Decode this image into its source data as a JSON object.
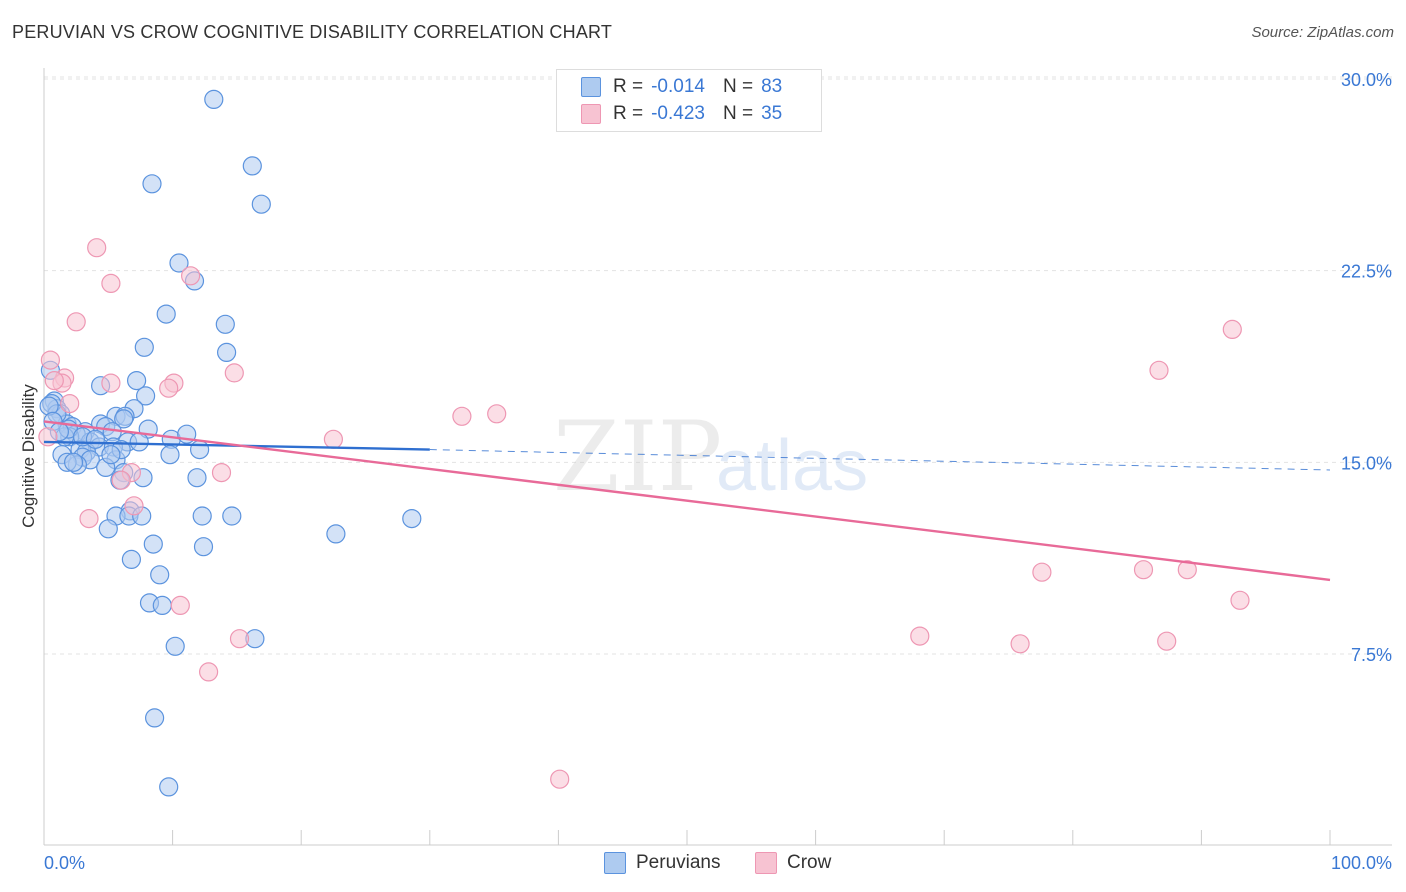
{
  "title": "PERUVIAN VS CROW COGNITIVE DISABILITY CORRELATION CHART",
  "source": "Source: ZipAtlas.com",
  "watermark": {
    "zip": "ZIP",
    "atlas": "atlas"
  },
  "legend": {
    "peruvians": {
      "r_label": "R =",
      "r_value": "-0.014",
      "n_label": "N =",
      "n_value": "83"
    },
    "crow": {
      "r_label": "R =",
      "r_value": "-0.423",
      "n_label": "N =",
      "n_value": "35"
    }
  },
  "bottom_legend": {
    "peruvians": "Peruvians",
    "crow": "Crow"
  },
  "colors": {
    "blue_fill": "#aecbf0",
    "blue_stroke": "#5b93de",
    "blue_line": "#2f6fd0",
    "pink_fill": "#f7c3d2",
    "pink_stroke": "#ee97b3",
    "pink_line": "#e86a98",
    "axis_text": "#3a78d4",
    "grid": "#e3e3e3"
  },
  "chart_data": {
    "type": "scatter",
    "title": "PERUVIAN VS CROW COGNITIVE DISABILITY CORRELATION CHART",
    "xlabel": "",
    "ylabel": "Cognitive Disability",
    "xlim": [
      0,
      100
    ],
    "ylim": [
      0,
      31
    ],
    "x_tick_labels": [
      "0.0%",
      "100.0%"
    ],
    "y_ticks": [
      7.5,
      15.0,
      22.5,
      30.0
    ],
    "y_tick_labels": [
      "7.5%",
      "15.0%",
      "22.5%",
      "30.0%"
    ],
    "series": [
      {
        "name": "Peruvians",
        "r": -0.014,
        "n": 83,
        "trend": {
          "x0": 0,
          "y0": 15.8,
          "x1": 30,
          "y1": 15.5,
          "dashed_to_x": 100,
          "dashed_to_y": 14.7
        },
        "points": [
          [
            13.2,
            29.2
          ],
          [
            16.2,
            26.6
          ],
          [
            8.4,
            25.9
          ],
          [
            16.9,
            25.1
          ],
          [
            10.5,
            22.8
          ],
          [
            11.7,
            22.1
          ],
          [
            9.5,
            20.8
          ],
          [
            14.1,
            20.4
          ],
          [
            7.8,
            19.5
          ],
          [
            14.2,
            19.3
          ],
          [
            0.5,
            18.6
          ],
          [
            0.8,
            17.4
          ],
          [
            1.0,
            17.1
          ],
          [
            1.3,
            16.9
          ],
          [
            0.6,
            17.3
          ],
          [
            1.8,
            16.5
          ],
          [
            2.2,
            16.4
          ],
          [
            4.4,
            18.0
          ],
          [
            7.2,
            18.2
          ],
          [
            7.9,
            17.6
          ],
          [
            7.0,
            17.1
          ],
          [
            5.6,
            16.8
          ],
          [
            6.3,
            16.8
          ],
          [
            6.2,
            16.7
          ],
          [
            4.4,
            16.5
          ],
          [
            4.8,
            16.4
          ],
          [
            5.3,
            16.2
          ],
          [
            8.1,
            16.3
          ],
          [
            3.2,
            16.2
          ],
          [
            2.5,
            16.1
          ],
          [
            2.0,
            16.0
          ],
          [
            1.6,
            16.0
          ],
          [
            3.6,
            15.8
          ],
          [
            6.5,
            15.8
          ],
          [
            7.4,
            15.8
          ],
          [
            9.9,
            15.9
          ],
          [
            11.1,
            16.1
          ],
          [
            12.1,
            15.5
          ],
          [
            4.3,
            15.6
          ],
          [
            5.4,
            15.6
          ],
          [
            2.8,
            15.5
          ],
          [
            3.3,
            15.4
          ],
          [
            1.4,
            15.3
          ],
          [
            3.0,
            15.2
          ],
          [
            3.6,
            15.1
          ],
          [
            5.6,
            15.1
          ],
          [
            9.8,
            15.3
          ],
          [
            2.6,
            14.9
          ],
          [
            1.8,
            15.0
          ],
          [
            4.8,
            14.8
          ],
          [
            6.2,
            14.6
          ],
          [
            7.7,
            14.4
          ],
          [
            5.9,
            14.3
          ],
          [
            11.9,
            14.4
          ],
          [
            6.7,
            13.1
          ],
          [
            5.6,
            12.9
          ],
          [
            6.6,
            12.9
          ],
          [
            7.6,
            12.9
          ],
          [
            12.3,
            12.9
          ],
          [
            14.6,
            12.9
          ],
          [
            28.6,
            12.8
          ],
          [
            5.0,
            12.4
          ],
          [
            22.7,
            12.2
          ],
          [
            8.5,
            11.8
          ],
          [
            12.4,
            11.7
          ],
          [
            6.8,
            11.2
          ],
          [
            9.0,
            10.6
          ],
          [
            8.2,
            9.5
          ],
          [
            9.2,
            9.4
          ],
          [
            16.4,
            8.1
          ],
          [
            10.2,
            7.8
          ],
          [
            8.6,
            5.0
          ],
          [
            9.7,
            2.3
          ],
          [
            1.9,
            16.3
          ],
          [
            3.0,
            16.0
          ],
          [
            4.0,
            15.9
          ],
          [
            1.0,
            16.9
          ],
          [
            0.4,
            17.2
          ],
          [
            2.3,
            15.0
          ],
          [
            6.0,
            15.5
          ],
          [
            0.7,
            16.6
          ],
          [
            1.2,
            16.2
          ],
          [
            5.2,
            15.3
          ]
        ]
      },
      {
        "name": "Crow",
        "r": -0.423,
        "n": 35,
        "trend": {
          "x0": 0,
          "y0": 16.6,
          "x1": 100,
          "y1": 10.4
        },
        "points": [
          [
            4.1,
            23.4
          ],
          [
            5.2,
            22.0
          ],
          [
            11.4,
            22.3
          ],
          [
            2.5,
            20.5
          ],
          [
            14.8,
            18.5
          ],
          [
            1.6,
            18.3
          ],
          [
            1.4,
            18.1
          ],
          [
            5.2,
            18.1
          ],
          [
            10.1,
            18.1
          ],
          [
            9.7,
            17.9
          ],
          [
            2.0,
            17.3
          ],
          [
            0.5,
            19.0
          ],
          [
            0.3,
            16.0
          ],
          [
            32.5,
            16.8
          ],
          [
            35.2,
            16.9
          ],
          [
            22.5,
            15.9
          ],
          [
            13.8,
            14.6
          ],
          [
            6.8,
            14.6
          ],
          [
            6.0,
            14.3
          ],
          [
            7.0,
            13.3
          ],
          [
            3.5,
            12.8
          ],
          [
            10.6,
            9.4
          ],
          [
            15.2,
            8.1
          ],
          [
            12.8,
            6.8
          ],
          [
            40.1,
            2.6
          ],
          [
            68.1,
            8.2
          ],
          [
            75.9,
            7.9
          ],
          [
            77.6,
            10.7
          ],
          [
            85.5,
            10.8
          ],
          [
            87.3,
            8.0
          ],
          [
            88.9,
            10.8
          ],
          [
            93.0,
            9.6
          ],
          [
            92.4,
            20.2
          ],
          [
            86.7,
            18.6
          ],
          [
            0.8,
            18.2
          ]
        ]
      }
    ]
  }
}
